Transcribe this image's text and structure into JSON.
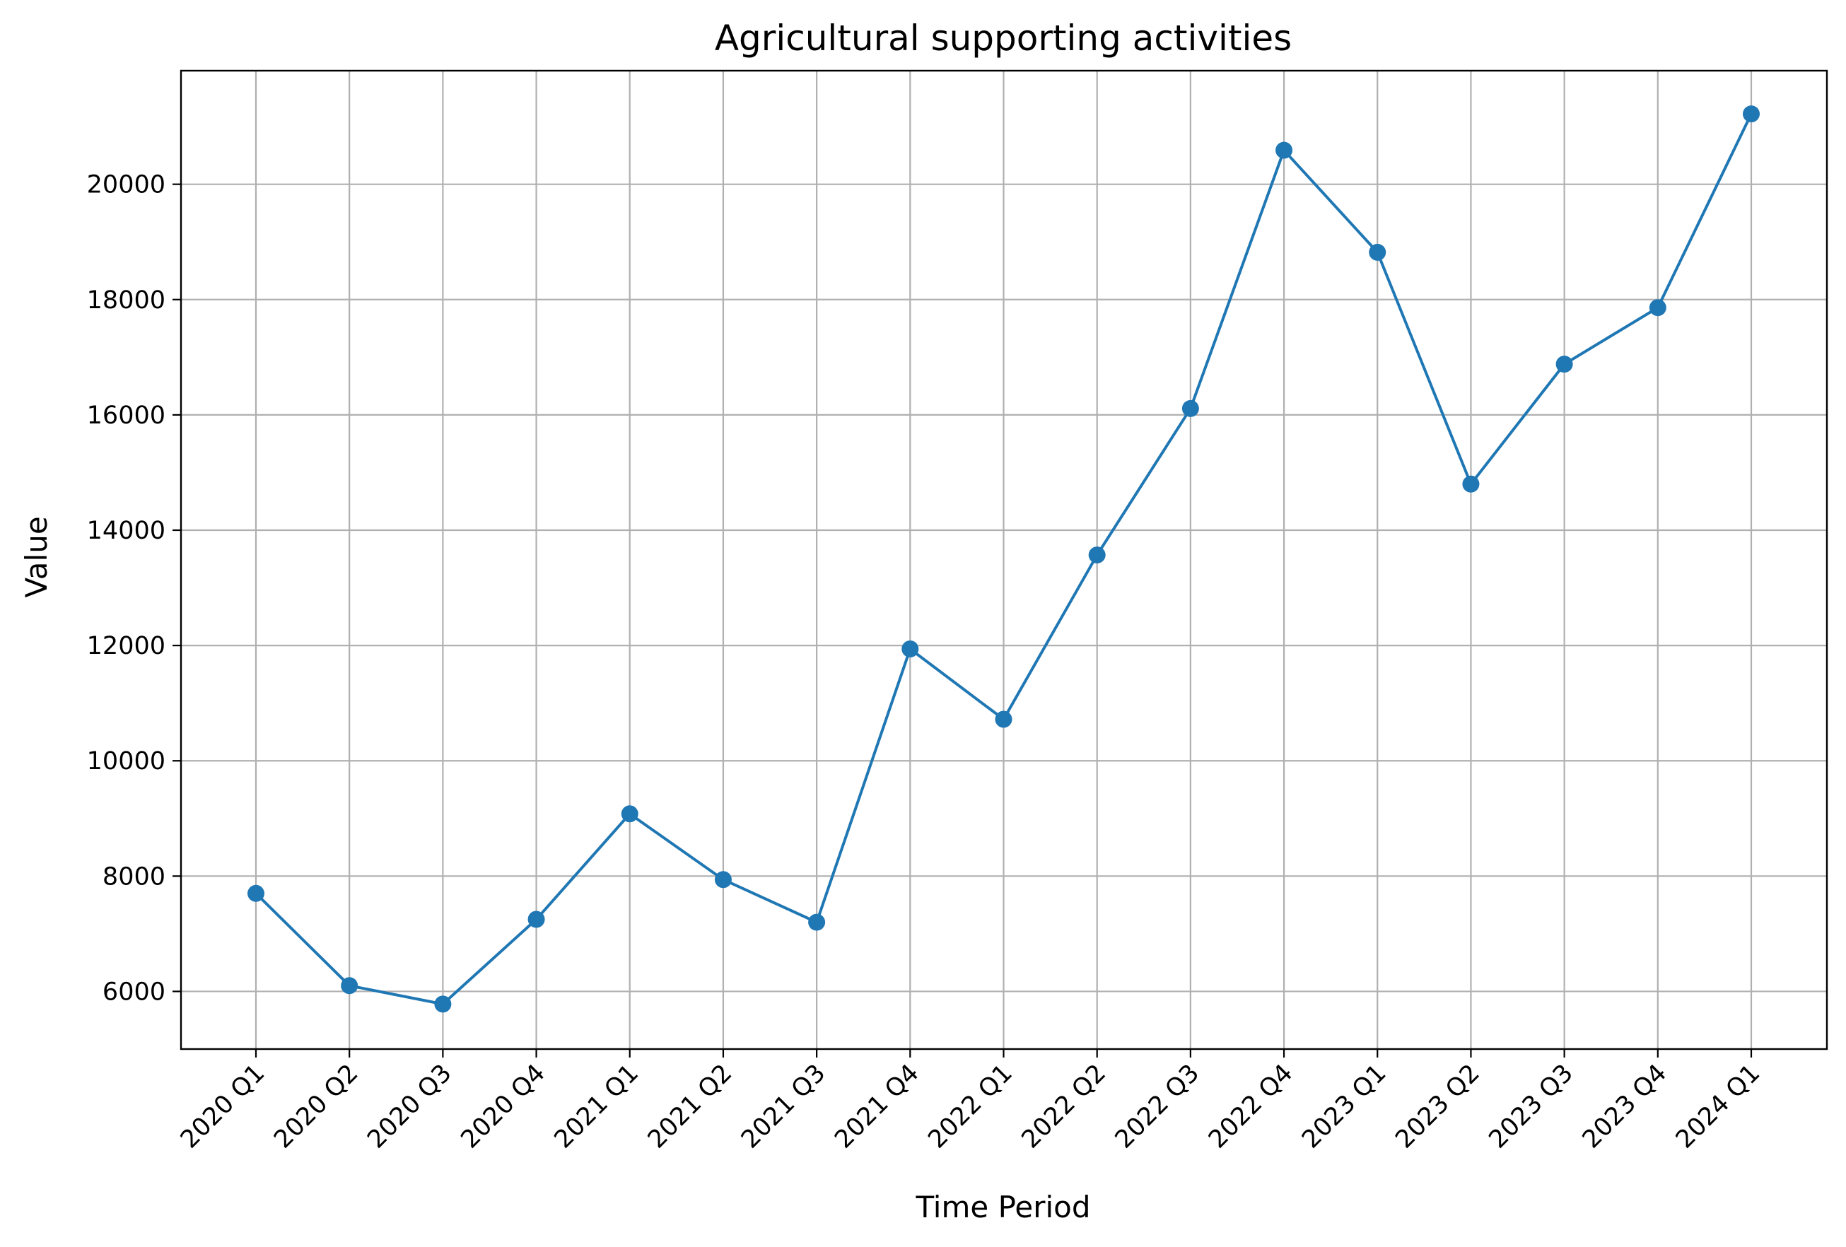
{
  "chart_data": {
    "type": "line",
    "title": "Agricultural supporting activities",
    "xlabel": "Time Period",
    "ylabel": "Value",
    "categories": [
      "2020 Q1",
      "2020 Q2",
      "2020 Q3",
      "2020 Q4",
      "2021 Q1",
      "2021 Q2",
      "2021 Q3",
      "2021 Q4",
      "2022 Q1",
      "2022 Q2",
      "2022 Q3",
      "2022 Q4",
      "2023 Q1",
      "2023 Q2",
      "2023 Q3",
      "2023 Q4",
      "2024 Q1"
    ],
    "series": [
      {
        "values": [
          7700,
          6100,
          5780,
          7250,
          9080,
          7940,
          7200,
          11940,
          10720,
          13570,
          16110,
          20590,
          18820,
          14800,
          16880,
          17860,
          21220
        ],
        "color": "#1f77b4",
        "marker": "circle"
      }
    ],
    "ylim": [
      5000,
      21970
    ],
    "yticks": [
      6000,
      8000,
      10000,
      12000,
      14000,
      16000,
      18000,
      20000
    ],
    "grid": true,
    "legend": "none"
  }
}
